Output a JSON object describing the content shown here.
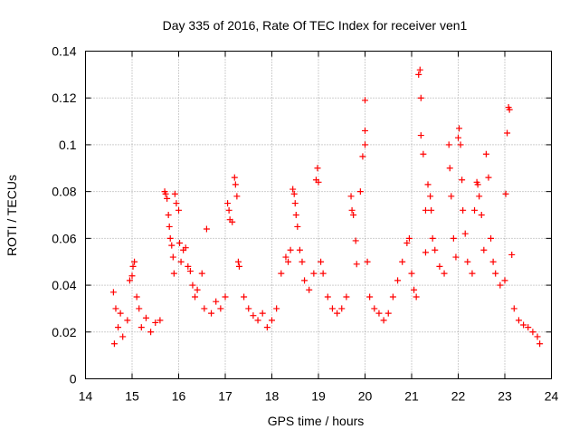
{
  "chart_data": {
    "type": "scatter",
    "title": "Day 335 of 2016, Rate Of TEC Index for receiver ven1",
    "xlabel": "GPS time / hours",
    "ylabel": "ROTI / TECUs",
    "xlim": [
      14,
      24
    ],
    "ylim": [
      0,
      0.14
    ],
    "x_ticks": [
      "14",
      "15",
      "16",
      "17",
      "18",
      "19",
      "20",
      "21",
      "22",
      "23",
      "24"
    ],
    "y_ticks": [
      "0",
      "0.02",
      "0.04",
      "0.06",
      "0.08",
      "0.1",
      "0.12",
      "0.14"
    ],
    "grid": true,
    "marker": "+",
    "color": "#ff0000",
    "legend": "none",
    "series": [
      {
        "points": [
          [
            14.6,
            0.037
          ],
          [
            14.65,
            0.03
          ],
          [
            14.7,
            0.022
          ],
          [
            14.62,
            0.015
          ],
          [
            14.75,
            0.028
          ],
          [
            14.8,
            0.018
          ],
          [
            14.9,
            0.025
          ],
          [
            14.95,
            0.042
          ],
          [
            15.0,
            0.044
          ],
          [
            15.02,
            0.048
          ],
          [
            15.05,
            0.05
          ],
          [
            15.1,
            0.035
          ],
          [
            15.15,
            0.03
          ],
          [
            15.2,
            0.022
          ],
          [
            15.3,
            0.026
          ],
          [
            15.4,
            0.02
          ],
          [
            15.5,
            0.024
          ],
          [
            15.6,
            0.025
          ],
          [
            15.7,
            0.08
          ],
          [
            15.72,
            0.079
          ],
          [
            15.75,
            0.077
          ],
          [
            15.78,
            0.07
          ],
          [
            15.8,
            0.065
          ],
          [
            15.82,
            0.06
          ],
          [
            15.85,
            0.057
          ],
          [
            15.88,
            0.052
          ],
          [
            15.9,
            0.045
          ],
          [
            15.92,
            0.079
          ],
          [
            15.95,
            0.075
          ],
          [
            16.0,
            0.072
          ],
          [
            16.02,
            0.058
          ],
          [
            16.05,
            0.05
          ],
          [
            16.1,
            0.055
          ],
          [
            16.15,
            0.056
          ],
          [
            16.2,
            0.048
          ],
          [
            16.25,
            0.046
          ],
          [
            16.3,
            0.04
          ],
          [
            16.35,
            0.035
          ],
          [
            16.4,
            0.038
          ],
          [
            16.5,
            0.045
          ],
          [
            16.55,
            0.03
          ],
          [
            16.6,
            0.064
          ],
          [
            16.7,
            0.028
          ],
          [
            16.8,
            0.033
          ],
          [
            16.9,
            0.03
          ],
          [
            17.0,
            0.035
          ],
          [
            17.05,
            0.075
          ],
          [
            17.08,
            0.072
          ],
          [
            17.1,
            0.068
          ],
          [
            17.15,
            0.067
          ],
          [
            17.2,
            0.086
          ],
          [
            17.22,
            0.083
          ],
          [
            17.25,
            0.078
          ],
          [
            17.28,
            0.05
          ],
          [
            17.3,
            0.048
          ],
          [
            17.4,
            0.035
          ],
          [
            17.5,
            0.03
          ],
          [
            17.6,
            0.027
          ],
          [
            17.7,
            0.025
          ],
          [
            17.8,
            0.028
          ],
          [
            17.9,
            0.022
          ],
          [
            18.0,
            0.025
          ],
          [
            18.1,
            0.03
          ],
          [
            18.2,
            0.045
          ],
          [
            18.3,
            0.052
          ],
          [
            18.35,
            0.05
          ],
          [
            18.4,
            0.055
          ],
          [
            18.45,
            0.081
          ],
          [
            18.48,
            0.079
          ],
          [
            18.5,
            0.075
          ],
          [
            18.52,
            0.07
          ],
          [
            18.55,
            0.065
          ],
          [
            18.6,
            0.055
          ],
          [
            18.65,
            0.05
          ],
          [
            18.7,
            0.042
          ],
          [
            18.8,
            0.038
          ],
          [
            18.9,
            0.045
          ],
          [
            18.95,
            0.085
          ],
          [
            18.98,
            0.09
          ],
          [
            19.0,
            0.084
          ],
          [
            19.05,
            0.05
          ],
          [
            19.1,
            0.045
          ],
          [
            19.2,
            0.035
          ],
          [
            19.3,
            0.03
          ],
          [
            19.4,
            0.028
          ],
          [
            19.5,
            0.03
          ],
          [
            19.6,
            0.035
          ],
          [
            19.7,
            0.078
          ],
          [
            19.72,
            0.072
          ],
          [
            19.75,
            0.07
          ],
          [
            19.8,
            0.059
          ],
          [
            19.82,
            0.049
          ],
          [
            19.9,
            0.08
          ],
          [
            19.95,
            0.095
          ],
          [
            20.0,
            0.1
          ],
          [
            20.0,
            0.106
          ],
          [
            20.0,
            0.119
          ],
          [
            20.05,
            0.05
          ],
          [
            20.1,
            0.035
          ],
          [
            20.2,
            0.03
          ],
          [
            20.3,
            0.028
          ],
          [
            20.4,
            0.025
          ],
          [
            20.5,
            0.028
          ],
          [
            20.6,
            0.035
          ],
          [
            20.7,
            0.042
          ],
          [
            20.8,
            0.05
          ],
          [
            20.9,
            0.058
          ],
          [
            20.95,
            0.06
          ],
          [
            21.0,
            0.045
          ],
          [
            21.05,
            0.038
          ],
          [
            21.1,
            0.035
          ],
          [
            21.15,
            0.13
          ],
          [
            21.18,
            0.132
          ],
          [
            21.2,
            0.12
          ],
          [
            21.2,
            0.104
          ],
          [
            21.25,
            0.096
          ],
          [
            21.3,
            0.072
          ],
          [
            21.3,
            0.054
          ],
          [
            21.35,
            0.083
          ],
          [
            21.4,
            0.078
          ],
          [
            21.42,
            0.072
          ],
          [
            21.45,
            0.06
          ],
          [
            21.5,
            0.055
          ],
          [
            21.6,
            0.048
          ],
          [
            21.7,
            0.045
          ],
          [
            21.8,
            0.1
          ],
          [
            21.82,
            0.09
          ],
          [
            21.85,
            0.078
          ],
          [
            21.9,
            0.06
          ],
          [
            21.95,
            0.052
          ],
          [
            22.0,
            0.103
          ],
          [
            22.02,
            0.107
          ],
          [
            22.05,
            0.1
          ],
          [
            22.08,
            0.085
          ],
          [
            22.1,
            0.072
          ],
          [
            22.15,
            0.062
          ],
          [
            22.2,
            0.05
          ],
          [
            22.3,
            0.045
          ],
          [
            22.35,
            0.072
          ],
          [
            22.4,
            0.084
          ],
          [
            22.42,
            0.083
          ],
          [
            22.45,
            0.078
          ],
          [
            22.5,
            0.07
          ],
          [
            22.55,
            0.055
          ],
          [
            22.6,
            0.096
          ],
          [
            22.65,
            0.086
          ],
          [
            22.7,
            0.06
          ],
          [
            22.75,
            0.05
          ],
          [
            22.8,
            0.045
          ],
          [
            22.9,
            0.04
          ],
          [
            23.0,
            0.042
          ],
          [
            23.02,
            0.079
          ],
          [
            23.05,
            0.105
          ],
          [
            23.08,
            0.116
          ],
          [
            23.1,
            0.115
          ],
          [
            23.15,
            0.053
          ],
          [
            23.2,
            0.03
          ],
          [
            23.3,
            0.025
          ],
          [
            23.4,
            0.023
          ],
          [
            23.5,
            0.022
          ],
          [
            23.6,
            0.02
          ],
          [
            23.7,
            0.018
          ],
          [
            23.75,
            0.015
          ]
        ]
      }
    ]
  }
}
